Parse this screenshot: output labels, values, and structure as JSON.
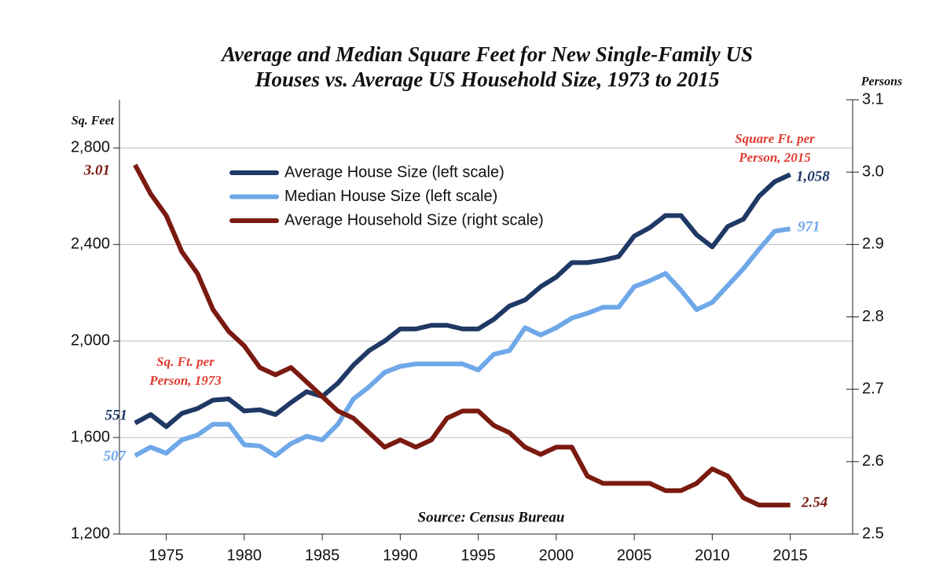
{
  "chart_data": {
    "type": "line",
    "title": [
      "Average and Median Square Feet for New Single-Family US",
      "Houses vs. Average US Household Size, 1973 to 2015"
    ],
    "y_label": "Sq. Feet",
    "y2_label": "Persons",
    "x": [
      1973,
      1974,
      1975,
      1976,
      1977,
      1978,
      1979,
      1980,
      1981,
      1982,
      1983,
      1984,
      1985,
      1986,
      1987,
      1988,
      1989,
      1990,
      1991,
      1992,
      1993,
      1994,
      1995,
      1996,
      1997,
      1998,
      1999,
      2000,
      2001,
      2002,
      2003,
      2004,
      2005,
      2006,
      2007,
      2008,
      2009,
      2010,
      2011,
      2012,
      2013,
      2014,
      2015
    ],
    "xlim": [
      1972,
      2019
    ],
    "xticks": [
      1975,
      1980,
      1985,
      1990,
      1995,
      2000,
      2005,
      2010,
      2015
    ],
    "ylim": [
      1200,
      3000
    ],
    "yticks": [
      {
        "value": 1200,
        "label": "1,200"
      },
      {
        "value": 1600,
        "label": "1,600"
      },
      {
        "value": 2000,
        "label": "2,000"
      },
      {
        "value": 2400,
        "label": "2,400"
      },
      {
        "value": 2800,
        "label": "2,800"
      }
    ],
    "y2lim": [
      2.5,
      3.1
    ],
    "y2ticks": [
      2.5,
      2.6,
      2.7,
      2.8,
      2.9,
      {
        "value": 3,
        "label": "3.0"
      },
      3.1
    ],
    "grid": true,
    "legend": "top-left",
    "series": [
      {
        "name": "Average House Size (left scale)",
        "color": "#1f3864",
        "values": [
          1660,
          1695,
          1645,
          1700,
          1720,
          1755,
          1760,
          1710,
          1715,
          1695,
          1745,
          1790,
          1770,
          1825,
          1900,
          1960,
          2000,
          2050,
          2050,
          2065,
          2065,
          2050,
          2050,
          2090,
          2145,
          2170,
          2225,
          2265,
          2325,
          2325,
          2335,
          2350,
          2435,
          2470,
          2520,
          2520,
          2440,
          2390,
          2475,
          2505,
          2600,
          2660,
          2690
        ]
      },
      {
        "name": "Median House Size (left scale)",
        "color": "#6fa8e8",
        "values": [
          1525,
          1560,
          1535,
          1590,
          1610,
          1655,
          1655,
          1570,
          1565,
          1525,
          1575,
          1605,
          1590,
          1655,
          1760,
          1810,
          1870,
          1895,
          1905,
          1905,
          1905,
          1905,
          1880,
          1945,
          1960,
          2055,
          2025,
          2055,
          2095,
          2115,
          2140,
          2140,
          2225,
          2250,
          2280,
          2210,
          2130,
          2160,
          2230,
          2300,
          2380,
          2455,
          2465
        ]
      },
      {
        "name": "Average Household Size (right scale)",
        "color": "#7b1a10",
        "axis": "y2",
        "values": [
          3.01,
          2.97,
          2.94,
          2.89,
          2.86,
          2.81,
          2.78,
          2.76,
          2.73,
          2.72,
          2.73,
          2.71,
          2.69,
          2.67,
          2.66,
          2.64,
          2.62,
          2.63,
          2.62,
          2.63,
          2.66,
          2.67,
          2.67,
          2.65,
          2.64,
          2.62,
          2.61,
          2.62,
          2.62,
          2.58,
          2.57,
          2.57,
          2.57,
          2.57,
          2.56,
          2.56,
          2.57,
          2.59,
          2.58,
          2.55,
          2.54,
          2.54,
          2.54
        ]
      }
    ],
    "annotations": [
      {
        "text": [
          "3.01"
        ],
        "color": "#7b1a10"
      },
      {
        "text": [
          "551"
        ],
        "color": "#1f3864"
      },
      {
        "text": [
          "507"
        ],
        "color": "#6fa8e8"
      },
      {
        "text": [
          "1,058"
        ],
        "color": "#1f3864"
      },
      {
        "text": [
          "971"
        ],
        "color": "#6fa8e8"
      },
      {
        "text": [
          "2.54"
        ],
        "color": "#7b1a10"
      },
      {
        "text": [
          "Sq. Ft. per",
          "Person, 1973"
        ],
        "color": "#e03c31"
      },
      {
        "text": [
          "Square Ft. per",
          "Person, 2015"
        ],
        "color": "#e03c31"
      },
      {
        "text": [
          "Source: Census Bureau"
        ],
        "color": "#111111"
      }
    ]
  }
}
